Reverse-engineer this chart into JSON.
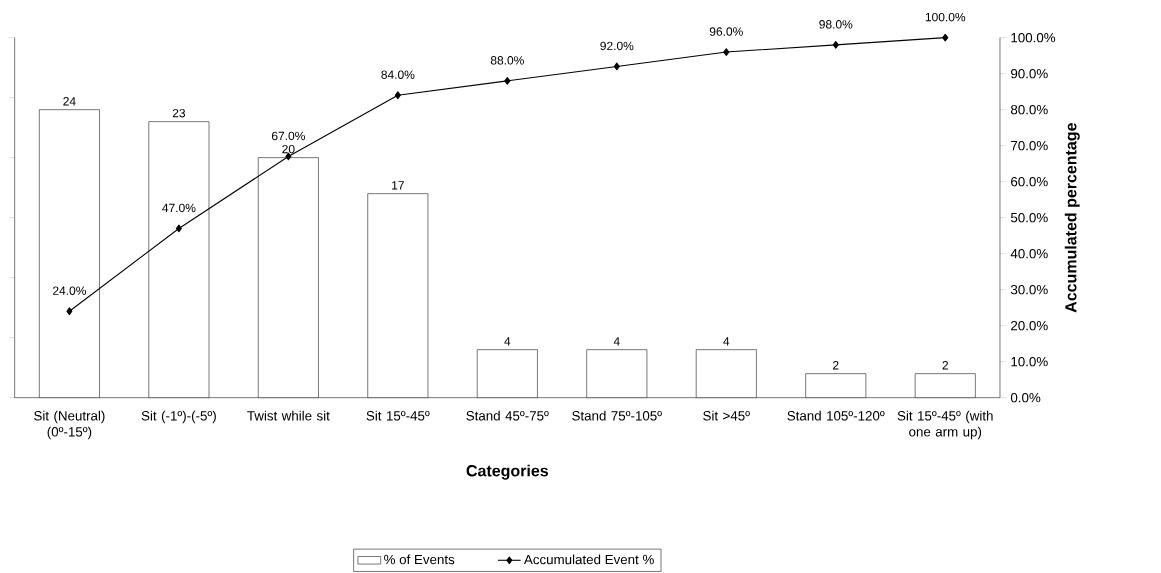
{
  "chart_data": {
    "type": "bar",
    "categories": [
      "Sit (Neutral) (0º-15º)",
      "Sit (-1º)-(-5º)",
      "Twist while sit",
      "Sit 15º-45º",
      "Stand 45º-75º",
      "Stand 75º-105º",
      "Sit >45º",
      "Stand 105º-120º",
      "Sit 15º-45º (with one arm up)"
    ],
    "xlabel": "Categories",
    "y2label": "Accumulated percentage",
    "ylim": [
      0,
      30
    ],
    "yticks": [
      {
        "value": 0,
        "label": null
      },
      {
        "value": 5,
        "label": null
      },
      {
        "value": 10,
        "label": null
      },
      {
        "value": 15,
        "label": null
      },
      {
        "value": 20,
        "label": null
      },
      {
        "value": 25,
        "label": null
      },
      {
        "value": 30,
        "label": null
      }
    ],
    "y2lim": [
      0,
      100
    ],
    "y2ticks": [
      {
        "value": 0,
        "label": "0.0%"
      },
      {
        "value": 10,
        "label": "10.0%"
      },
      {
        "value": 20,
        "label": "20.0%"
      },
      {
        "value": 30,
        "label": "30.0%"
      },
      {
        "value": 40,
        "label": "40.0%"
      },
      {
        "value": 50,
        "label": "50.0%"
      },
      {
        "value": 60,
        "label": "60.0%"
      },
      {
        "value": 70,
        "label": "70.0%"
      },
      {
        "value": 80,
        "label": "80.0%"
      },
      {
        "value": 90,
        "label": "90.0%"
      },
      {
        "value": 100,
        "label": "100.0%"
      }
    ],
    "legend": "bottom",
    "series": [
      {
        "name": "% of Events",
        "color": "#ffffff",
        "values": [
          24,
          23,
          20,
          17,
          4,
          4,
          4,
          2,
          2
        ],
        "value_labels": [
          "24",
          "23",
          "20",
          "17",
          "4",
          "4",
          "4",
          "2",
          "2"
        ]
      },
      {
        "name": "Accumulated Event %",
        "type": "line",
        "axis": "y2",
        "color": "#000000",
        "marker": "diamond",
        "line_style": "solid",
        "values": [
          24,
          47,
          67,
          84,
          88,
          92,
          96,
          98,
          100
        ],
        "value_labels": [
          "24.0%",
          "47.0%",
          "67.0%",
          "84.0%",
          "88.0%",
          "92.0%",
          "96.0%",
          "98.0%",
          "100.0%"
        ]
      }
    ]
  }
}
